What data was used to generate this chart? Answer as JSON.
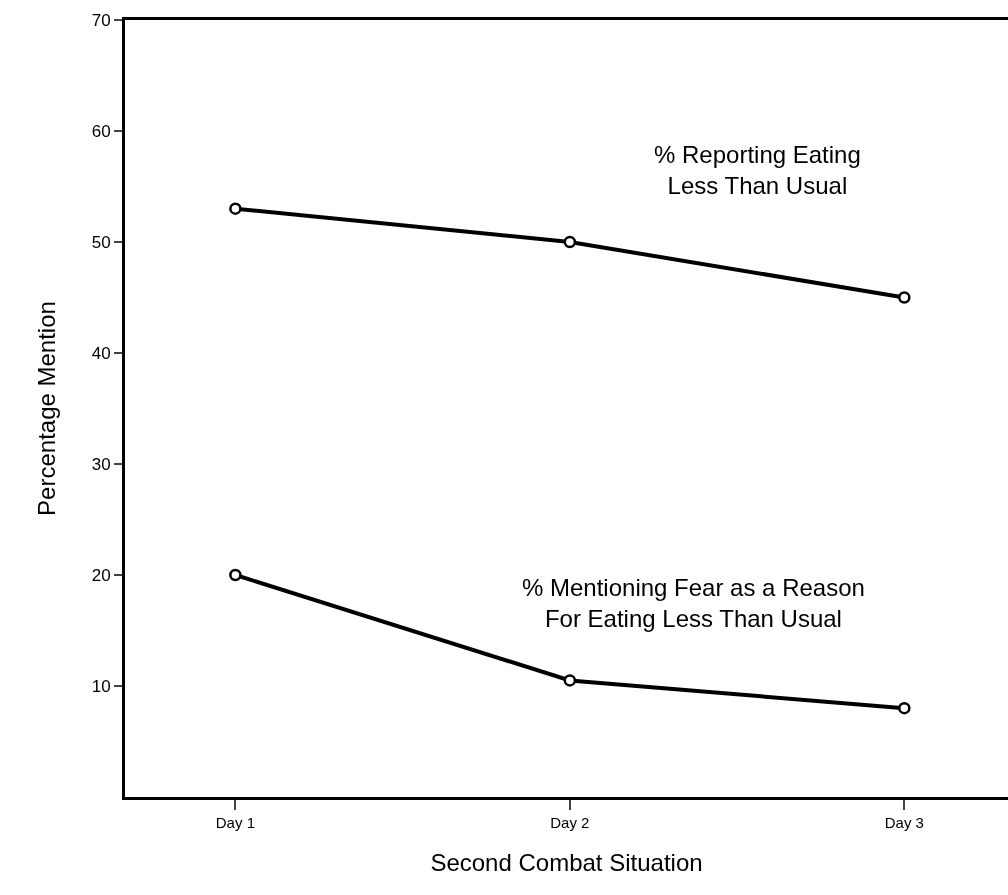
{
  "chart_data": {
    "type": "line",
    "xlabel": "Second Combat Situation",
    "ylabel": "Percentage Mention",
    "categories": [
      "Day 1",
      "Day 2",
      "Day 3"
    ],
    "series": [
      {
        "name": "% Reporting Eating\nLess Than Usual",
        "color": "#000000",
        "values": [
          53,
          50,
          45
        ]
      },
      {
        "name": "% Mentioning Fear as a Reason\nFor Eating Less Than Usual",
        "color": "#000000",
        "values": [
          20,
          10.5,
          8
        ]
      }
    ],
    "ylim": [
      0,
      70
    ],
    "yticks": [
      10,
      20,
      30,
      40,
      50,
      60,
      70
    ],
    "grid": false,
    "legend": false,
    "marker": "circle",
    "line_style": "solid"
  }
}
